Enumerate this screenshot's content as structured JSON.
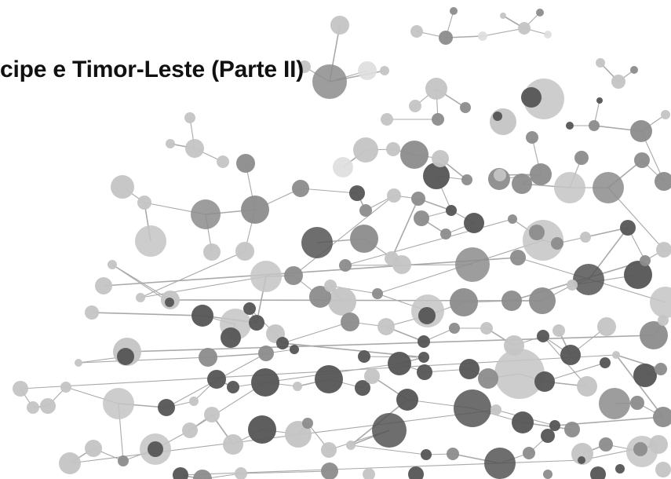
{
  "slide": {
    "title": "cipe e Timor-Leste (Parte II)"
  },
  "background": {
    "illustration": "molecular-network",
    "palette": {
      "background": "#ffffff",
      "edge": "#a9a9a9",
      "node_dark": "#555555",
      "node_mid": "#8c8c8c",
      "node_light": "#c4c4c4",
      "node_pale": "#dedede"
    }
  }
}
